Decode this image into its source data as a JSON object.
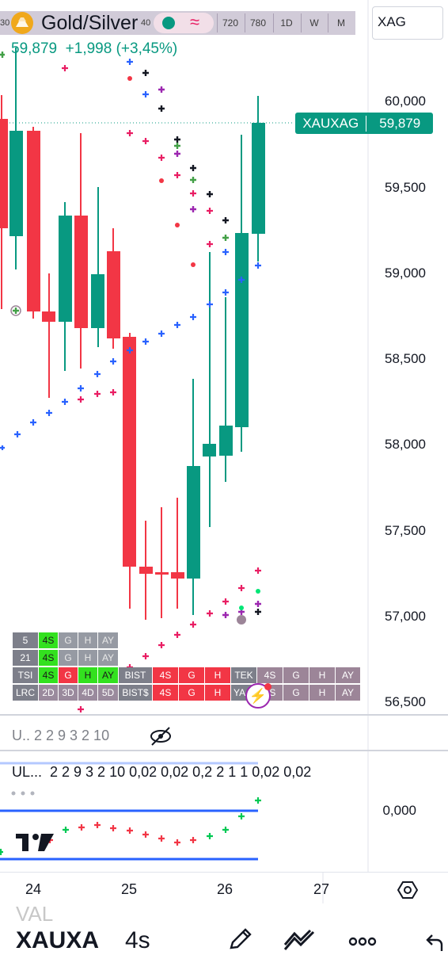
{
  "header": {
    "symbol": "Gold/Silver",
    "timeframes": [
      "720",
      "780",
      "1D",
      "W",
      "M"
    ],
    "price_line": "59,879  +1,998 (+3,45%)",
    "search_value": "XAG"
  },
  "price_axis": {
    "labels": [
      "60,000",
      "59,500",
      "59,000",
      "58,500",
      "58,000",
      "57,500",
      "57,000",
      "56,500"
    ],
    "last_symbol": "XAUXAG",
    "last_price": "59,879"
  },
  "table": {
    "rows": [
      [
        "5",
        "4S",
        "G",
        "H",
        "AY"
      ],
      [
        "21",
        "4S",
        "G",
        "H",
        "AY"
      ],
      [
        "TSI",
        "4S",
        "G",
        "H",
        "AY",
        "BIST",
        "4S",
        "G",
        "H",
        "TEK",
        "4S",
        "G",
        "H",
        "AY"
      ],
      [
        "LRC",
        "2D",
        "3D",
        "4D",
        "5D",
        "BIST$",
        "4S",
        "G",
        "H",
        "YA",
        "4S",
        "G",
        "H",
        "AY"
      ]
    ]
  },
  "indicator": {
    "stats_collapsed": "U.. 2 2 9 3 2 10",
    "stats_line": "UL...  2 2 9 3 2 10 0,02 0,02 0,2 2 1 1 0,02 0,02",
    "axis_value": "0,000"
  },
  "date_axis": [
    "24",
    "25",
    "26",
    "27"
  ],
  "bottom": {
    "symbol": "XAUXA",
    "timeframe": "4s",
    "faded_text": "VAL"
  },
  "colors": {
    "up": "#089981",
    "down": "#f23645",
    "accent": "#2962ff"
  }
}
